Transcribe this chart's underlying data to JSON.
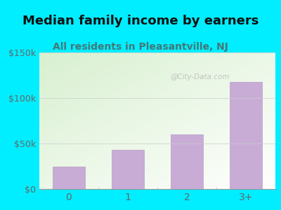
{
  "title": "Median family income by earners",
  "subtitle": "All residents in Pleasantville, NJ",
  "categories": [
    "0",
    "1",
    "2",
    "3+"
  ],
  "values": [
    25000,
    43000,
    60000,
    118000
  ],
  "ylim": [
    0,
    150000
  ],
  "yticks": [
    0,
    50000,
    100000,
    150000
  ],
  "ytick_labels": [
    "$0",
    "$50k",
    "$100k",
    "$150k"
  ],
  "bar_color": "#c8acd6",
  "bar_edge_color": "#b89cc6",
  "title_color": "#111111",
  "subtitle_color": "#447777",
  "tick_color": "#666666",
  "background_outer": "#00eeff",
  "background_plot_left": "#d8f0d0",
  "background_plot_right": "#f8fff8",
  "watermark": "@City-Data.com",
  "title_fontsize": 13,
  "subtitle_fontsize": 10,
  "bar_width": 0.55
}
